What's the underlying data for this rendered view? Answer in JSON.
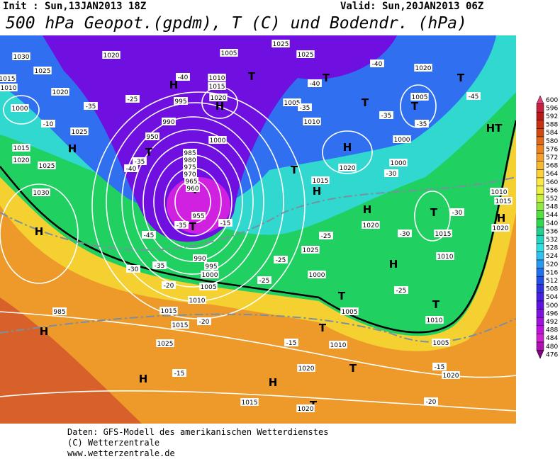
{
  "header": {
    "init": "Init : Sun,13JAN2013 18Z",
    "valid": "Valid: Sun,20JAN2013 06Z",
    "title": "500 hPa Geopot.(gpdm), T (C) und Bodendr. (hPa)"
  },
  "map_labels": [
    "1030",
    "1025",
    "1015",
    "1010",
    "1020",
    "1000",
    "1025",
    "1015",
    "1020",
    "1025",
    "1030",
    "H",
    "H",
    "H",
    "H",
    "H",
    "H",
    "H",
    "H",
    "H",
    "H",
    "H",
    "HT",
    "H",
    "T",
    "T",
    "T",
    "T",
    "T",
    "T",
    "T",
    "T",
    "T",
    "T",
    "T",
    "T",
    "T",
    "T",
    "T",
    "985",
    "980",
    "975",
    "970",
    "965",
    "960",
    "955",
    "950",
    "990",
    "995",
    "1000",
    "1005",
    "1010",
    "1015",
    "1020",
    "1025",
    "1025",
    "1020",
    "1005",
    "1000",
    "1000",
    "1005",
    "1010",
    "1015",
    "1020",
    "1020",
    "1015",
    "1010",
    "1010",
    "1015",
    "1020",
    "1025",
    "1000",
    "1005",
    "1010",
    "1005",
    "1010",
    "1015",
    "1015",
    "1010",
    "1005",
    "1000",
    "995",
    "990",
    "985",
    "1025",
    "1020",
    "1020",
    "1015",
    "1020",
    "1020",
    "-40",
    "-40",
    "-45",
    "-35",
    "-35",
    "-40",
    "-35",
    "-30",
    "-30",
    "-30",
    "-25",
    "-25",
    "-25",
    "-25",
    "-20",
    "-20",
    "-15",
    "-15",
    "-15",
    "-20",
    "-15",
    "-35",
    "-35",
    "-40",
    "-45",
    "-35",
    "-30",
    "-25",
    "-10",
    "-35",
    "-45"
  ],
  "colorbar": {
    "ticks": [
      600,
      596,
      592,
      588,
      584,
      580,
      576,
      572,
      568,
      564,
      560,
      556,
      552,
      548,
      544,
      540,
      536,
      532,
      528,
      524,
      520,
      516,
      512,
      508,
      504,
      500,
      496,
      492,
      488,
      484,
      480,
      476
    ],
    "colors": [
      "#e0407a",
      "#c8203c",
      "#b81818",
      "#c83010",
      "#d04a10",
      "#e06818",
      "#ee8420",
      "#f4a028",
      "#f8b830",
      "#fcd038",
      "#fce840",
      "#f0f040",
      "#c8f040",
      "#90e840",
      "#50e040",
      "#30d850",
      "#20d090",
      "#20d8c0",
      "#30e0e0",
      "#30c0f0",
      "#2898f0",
      "#2070f0",
      "#2050e8",
      "#3030e0",
      "#4820e0",
      "#6010e0",
      "#8010e0",
      "#a010e0",
      "#c010e0",
      "#d020d0",
      "#b010b0",
      "#800080"
    ]
  },
  "footer": [
    "Daten: GFS-Modell des amerikanischen Wetterdienstes",
    "(C) Wetterzentrale",
    "www.wetterzentrale.de"
  ]
}
